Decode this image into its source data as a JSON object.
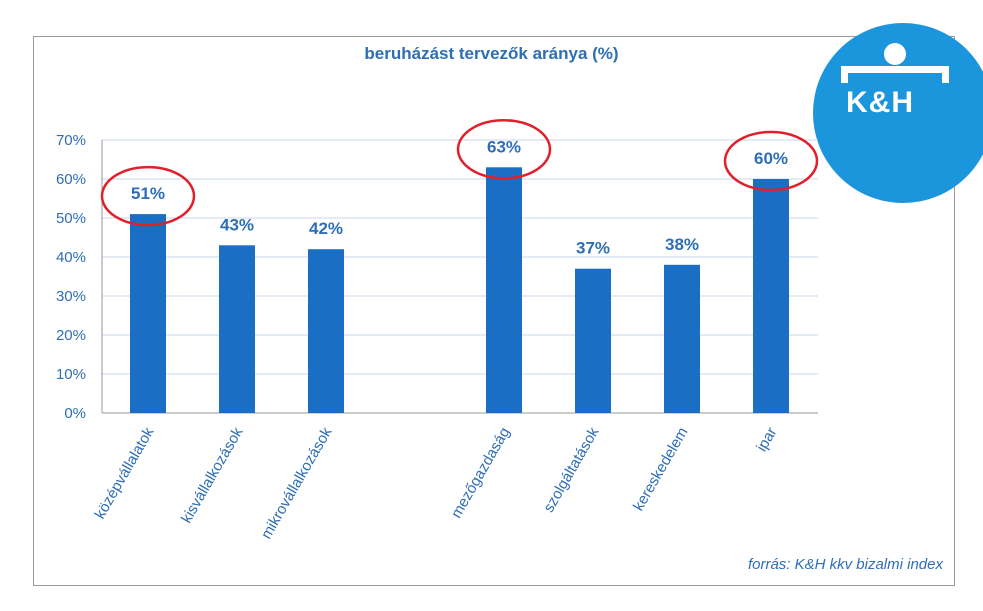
{
  "chart_data": {
    "type": "bar",
    "title": "beruházást tervezők aránya (%)",
    "categories": [
      "középvállalatok",
      "kisvállalkozások",
      "mikrovállalkozások",
      "mezőgazdaság",
      "szolgáltatások",
      "kereskedelem",
      "ipar"
    ],
    "values": [
      51,
      43,
      42,
      63,
      37,
      38,
      60
    ],
    "data_labels": [
      "51%",
      "43%",
      "42%",
      "63%",
      "37%",
      "38%",
      "60%"
    ],
    "highlighted": [
      "középvállalatok",
      "mezőgazdaság",
      "ipar"
    ],
    "ylim": [
      0,
      70
    ],
    "yticks": [
      0,
      10,
      20,
      30,
      40,
      50,
      60,
      70
    ],
    "ytick_labels": [
      "0%",
      "10%",
      "20%",
      "30%",
      "40%",
      "50%",
      "60%",
      "70%"
    ],
    "xlabel": "",
    "ylabel": "",
    "grid": true,
    "colors": {
      "bar": "#1a6fc4",
      "text": "#2e6eb5",
      "grid": "#c9d7ea",
      "highlight": "#e0202a"
    }
  },
  "brand": {
    "logo_text": "K&H",
    "color": "#1b95dc"
  },
  "source_note": "forrás: K&H kkv bizalmi index"
}
